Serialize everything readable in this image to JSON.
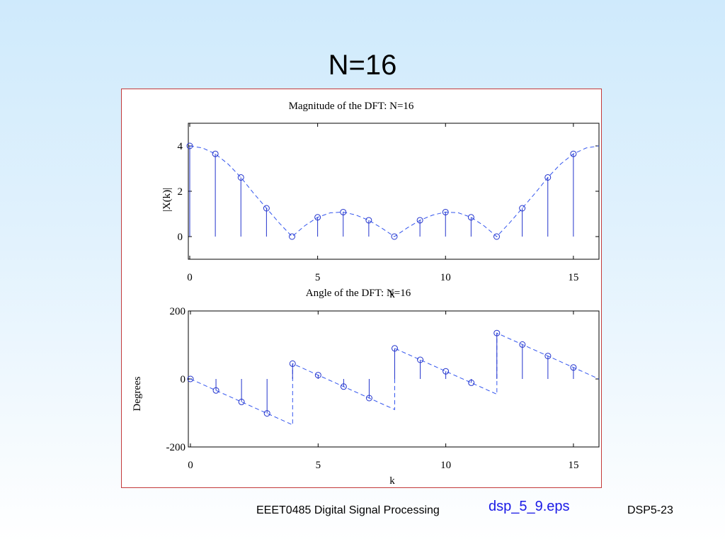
{
  "slide": {
    "title": "N=16",
    "footer_course": "EEET0485 Digital Signal Processing",
    "footer_file": "dsp_5_9.eps",
    "footer_page": "DSP5-23"
  },
  "colors": {
    "frame_border": "#c43a3a",
    "stem": "#2233cc",
    "dashed": "#3355ee",
    "file_link": "#1a1ae6"
  },
  "chart_data": [
    {
      "type": "stem",
      "title": "Magnitude of the DFT: N=16",
      "xlabel": "k",
      "ylabel": "|X(k)|",
      "xlim": [
        0,
        16
      ],
      "ylim": [
        -1,
        5
      ],
      "xticks": [
        0,
        5,
        10,
        15
      ],
      "yticks": [
        0,
        2,
        4
      ],
      "k": [
        0,
        1,
        2,
        3,
        4,
        5,
        6,
        7,
        8,
        9,
        10,
        11,
        12,
        13,
        14,
        15
      ],
      "values": [
        4,
        3.65,
        2.61,
        1.25,
        0,
        0.85,
        1.08,
        0.72,
        0,
        0.72,
        1.08,
        0.85,
        0,
        1.25,
        2.61,
        3.65
      ],
      "overlay": {
        "style": "dashed",
        "x": [
          0,
          0.5,
          1,
          1.5,
          2,
          2.5,
          3,
          3.5,
          4,
          4.5,
          5,
          5.5,
          6,
          6.5,
          7,
          7.5,
          8,
          8.5,
          9,
          9.5,
          10,
          10.5,
          11,
          11.5,
          12,
          12.5,
          13,
          13.5,
          14,
          14.5,
          15,
          15.5,
          16
        ],
        "y": [
          4,
          3.91,
          3.65,
          3.2,
          2.61,
          1.91,
          1.25,
          0.6,
          0,
          0.48,
          0.85,
          1.05,
          1.08,
          0.95,
          0.72,
          0.38,
          0,
          0.38,
          0.72,
          0.95,
          1.08,
          1.05,
          0.85,
          0.48,
          0,
          0.6,
          1.25,
          1.91,
          2.61,
          3.2,
          3.65,
          3.91,
          4
        ]
      }
    },
    {
      "type": "stem",
      "title": "Angle of the DFT: N=16",
      "xlabel": "k",
      "ylabel": "Degrees",
      "xlim": [
        0,
        16
      ],
      "ylim": [
        -200,
        200
      ],
      "xticks": [
        0,
        5,
        10,
        15
      ],
      "yticks": [
        -200,
        0,
        200
      ],
      "k": [
        0,
        1,
        2,
        3,
        4,
        5,
        6,
        7,
        8,
        9,
        10,
        11,
        12,
        13,
        14,
        15
      ],
      "values": [
        0,
        -33.75,
        -67.5,
        -101.25,
        45,
        11.25,
        -22.5,
        -56.25,
        90,
        56.25,
        22.5,
        -11.25,
        135,
        101.25,
        67.5,
        33.75
      ],
      "overlay": {
        "style": "dashed",
        "x": [
          0,
          4,
          4,
          8,
          8,
          12,
          12,
          16
        ],
        "y": [
          0,
          -135,
          45,
          -90,
          90,
          -45,
          135,
          0
        ]
      }
    }
  ]
}
